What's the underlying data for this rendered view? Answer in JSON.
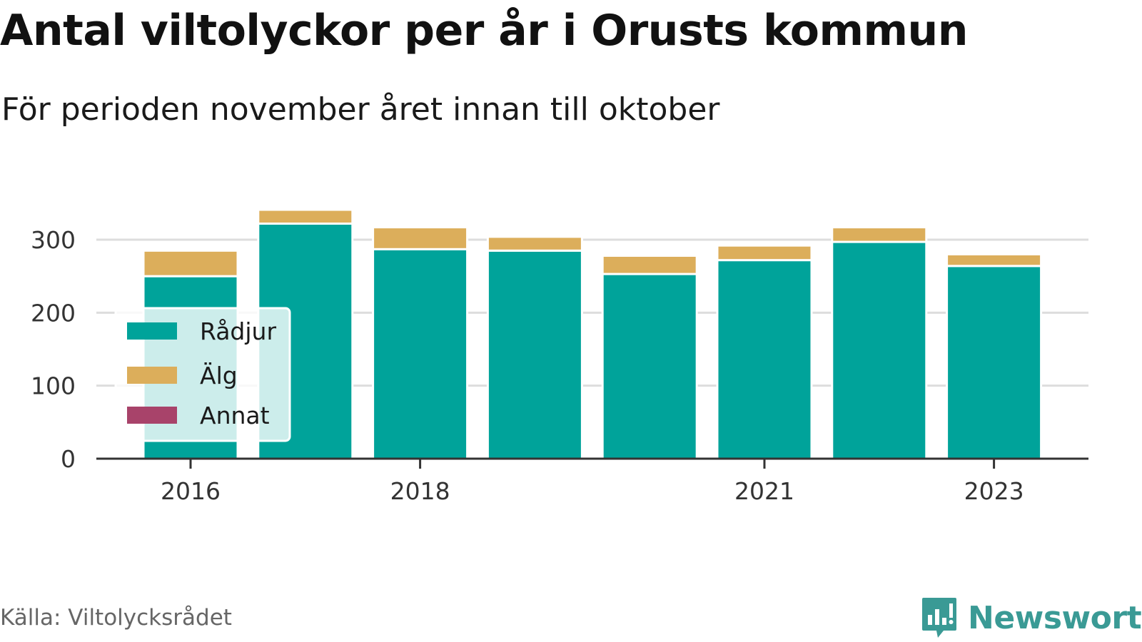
{
  "title": "Antal viltolyckor per år i Orusts kommun",
  "subtitle": "För perioden november året innan till oktober",
  "source": "Källa: Viltolycksrådet",
  "brand": "Newsworthy",
  "colors": {
    "Rådjur": "#00a39a",
    "Älg": "#dcae5b",
    "Annat": "#a8436a",
    "grid": "#dddddd",
    "axis": "#333333",
    "brand": "#3a9a95"
  },
  "chart_data": {
    "type": "bar",
    "stacked": true,
    "categories": [
      "2016",
      "2017",
      "2018",
      "2019",
      "2020",
      "2021",
      "2022",
      "2023"
    ],
    "x_tick_labels": [
      "2016",
      "2018",
      "2021",
      "2023"
    ],
    "series": [
      {
        "name": "Rådjur",
        "values": [
          250,
          322,
          287,
          285,
          253,
          272,
          297,
          264
        ]
      },
      {
        "name": "Älg",
        "values": [
          35,
          19,
          30,
          19,
          25,
          20,
          20,
          16
        ]
      },
      {
        "name": "Annat",
        "values": [
          0,
          0,
          0,
          0,
          0,
          0,
          0,
          0
        ]
      }
    ],
    "y_ticks": [
      0,
      100,
      200,
      300
    ],
    "ylim": [
      0,
      340
    ],
    "grid": true,
    "legend_position": "bottom-left inside"
  }
}
